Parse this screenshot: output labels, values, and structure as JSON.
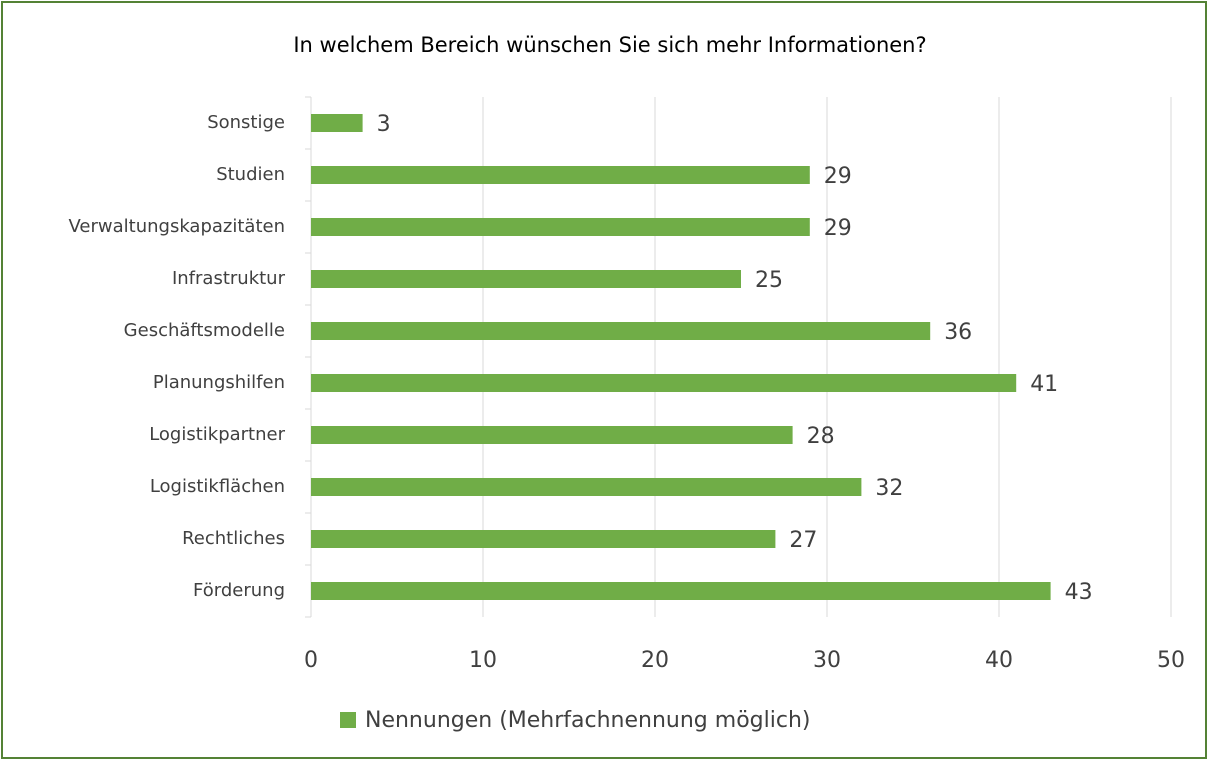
{
  "chart_data": {
    "type": "bar",
    "title": "In welchem Bereich wünschen Sie sich mehr Informationen?",
    "categories": [
      "Sonstige",
      "Studien",
      "Verwaltungskapazitäten",
      "Infrastruktur",
      "Geschäftsmodelle",
      "Planungshilfen",
      "Logistikpartner",
      "Logistikflächen",
      "Rechtliches",
      "Förderung"
    ],
    "series": [
      {
        "name": "Nennungen (Mehrfachnennung möglich)",
        "color": "#70ad47",
        "values": [
          3,
          29,
          29,
          25,
          36,
          41,
          28,
          32,
          27,
          43
        ]
      }
    ],
    "xlim": [
      0,
      50
    ],
    "xticks": [
      0,
      10,
      20,
      30,
      40,
      50
    ],
    "grid": true,
    "legend": "bottom"
  }
}
